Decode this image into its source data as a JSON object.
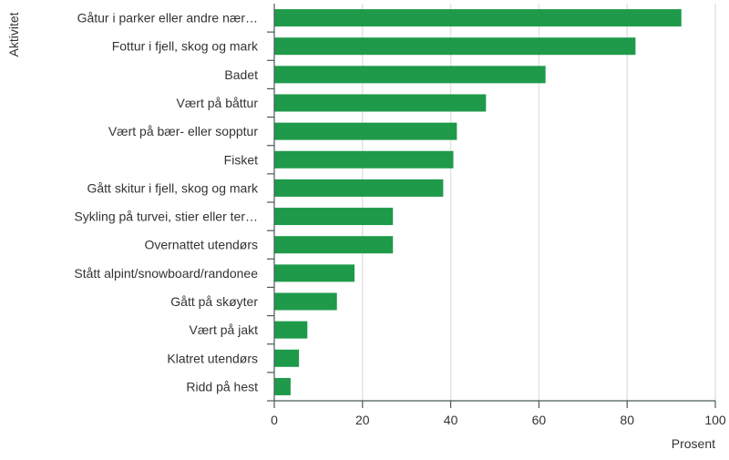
{
  "chart_data": {
    "type": "bar",
    "orientation": "horizontal",
    "categories": [
      "Gåtur i parker eller andre nær…",
      "Fottur i fjell, skog og mark",
      "Badet",
      "Vært på båttur",
      "Vært på bær- eller sopptur",
      "Fisket",
      "Gått skitur i fjell, skog og mark",
      "Sykling på turvei, stier eller ter…",
      "Overnattet utendørs",
      "Stått alpint/snowboard/randonee",
      "Gått på skøyter",
      "Vært på jakt",
      "Klatret utendørs",
      "Ridd på hest"
    ],
    "values": [
      92.3,
      81.9,
      61.5,
      48.0,
      41.4,
      40.6,
      38.3,
      26.9,
      26.9,
      18.2,
      14.2,
      7.5,
      5.6,
      3.7
    ],
    "xlabel": "Prosent",
    "ylabel": "Aktivitet",
    "xlim": [
      0,
      100
    ],
    "xticks": [
      0,
      20,
      40,
      60,
      80,
      100
    ],
    "grid": "vertical",
    "bar_color": "#1e9a4a"
  }
}
